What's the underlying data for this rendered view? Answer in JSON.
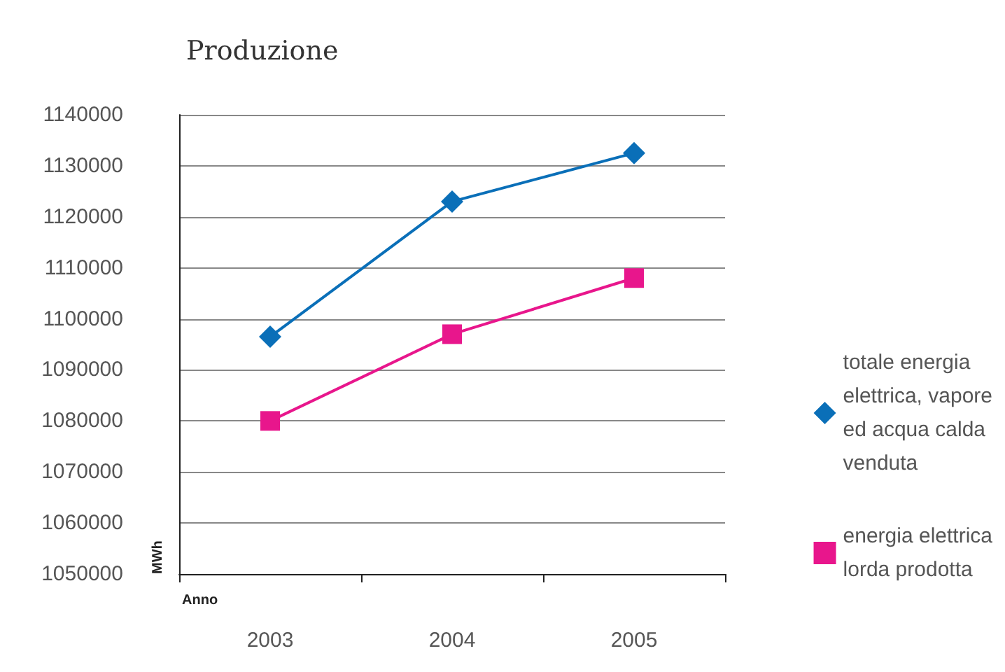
{
  "chart_data": {
    "type": "line",
    "title": "Produzione",
    "xlabel": "Anno",
    "ylabel": "MWh",
    "categories": [
      "2003",
      "2004",
      "2005"
    ],
    "series": [
      {
        "name": "totale energia elettrica, vapore ed acqua calda venduta",
        "color": "#0a6fb8",
        "marker": "diamond",
        "values": [
          1096500,
          1123000,
          1132500
        ]
      },
      {
        "name": "energia elettrica lorda prodotta",
        "color": "#e8168c",
        "marker": "square",
        "values": [
          1080000,
          1097000,
          1108000
        ]
      }
    ],
    "ylim": [
      1050000,
      1140000
    ],
    "yticks": [
      1050000,
      1060000,
      1070000,
      1080000,
      1090000,
      1100000,
      1110000,
      1120000,
      1130000,
      1140000
    ],
    "grid": "y",
    "legend": "right",
    "line_style": "solid"
  }
}
